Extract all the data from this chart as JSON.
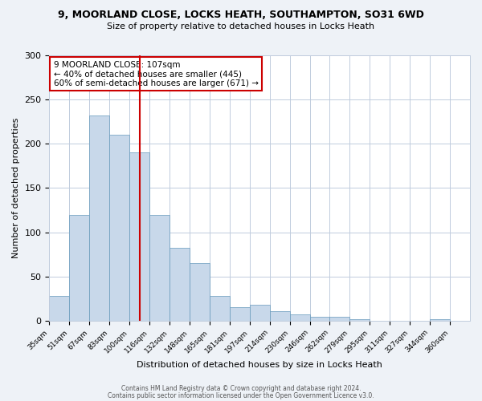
{
  "title": "9, MOORLAND CLOSE, LOCKS HEATH, SOUTHAMPTON, SO31 6WD",
  "subtitle": "Size of property relative to detached houses in Locks Heath",
  "xlabel": "Distribution of detached houses by size in Locks Heath",
  "ylabel": "Number of detached properties",
  "bar_color": "#c8d8ea",
  "bar_edge_color": "#6699bb",
  "categories": [
    "35sqm",
    "51sqm",
    "67sqm",
    "83sqm",
    "100sqm",
    "116sqm",
    "132sqm",
    "148sqm",
    "165sqm",
    "181sqm",
    "197sqm",
    "214sqm",
    "230sqm",
    "246sqm",
    "262sqm",
    "279sqm",
    "295sqm",
    "311sqm",
    "327sqm",
    "344sqm",
    "360sqm"
  ],
  "values": [
    28,
    120,
    232,
    210,
    190,
    120,
    82,
    65,
    28,
    15,
    18,
    11,
    7,
    4,
    4,
    2,
    0,
    0,
    0,
    2,
    0
  ],
  "vline_x": 4.5,
  "vline_color": "#cc0000",
  "annotation_title": "9 MOORLAND CLOSE: 107sqm",
  "annotation_line1": "← 40% of detached houses are smaller (445)",
  "annotation_line2": "60% of semi-detached houses are larger (671) →",
  "annotation_box_color": "#ffffff",
  "annotation_box_edge_color": "#cc0000",
  "ylim": [
    0,
    300
  ],
  "yticks": [
    0,
    50,
    100,
    150,
    200,
    250,
    300
  ],
  "footer1": "Contains HM Land Registry data © Crown copyright and database right 2024.",
  "footer2": "Contains public sector information licensed under the Open Government Licence v3.0.",
  "background_color": "#eef2f7",
  "plot_background_color": "#ffffff",
  "grid_color": "#c0ccdd"
}
